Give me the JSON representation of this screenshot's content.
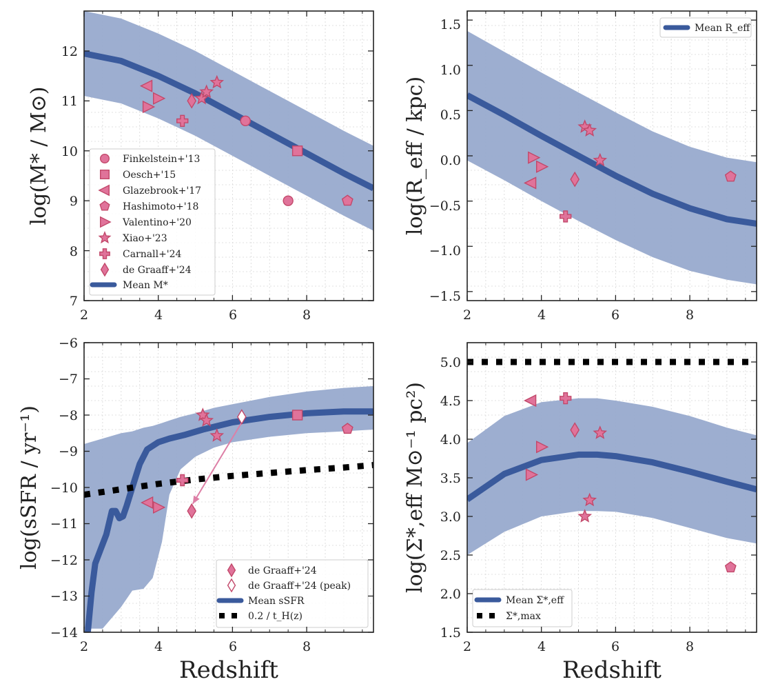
{
  "colors": {
    "band": "#98aacd",
    "mean": "#3a5a9c",
    "obs_fill": "#e0739a",
    "obs_edge": "#c2486a",
    "hline": "#000000",
    "arrow": "#dd7fa6"
  },
  "chart_data": [
    {
      "id": "mass",
      "type": "line",
      "ylabel": "log(M* / M⊙)",
      "xlabel": "",
      "xlim": [
        2,
        9.8
      ],
      "ylim": [
        7,
        12.8
      ],
      "xticks": [
        "2",
        "4",
        "6",
        "8"
      ],
      "yticks": [
        "7",
        "8",
        "9",
        "10",
        "11",
        "12"
      ],
      "x": [
        2,
        3,
        4,
        5,
        6,
        7,
        8,
        9,
        9.8
      ],
      "mean": [
        11.95,
        11.8,
        11.5,
        11.15,
        10.75,
        10.35,
        9.95,
        9.55,
        9.25
      ],
      "band_upper": [
        12.8,
        12.65,
        12.35,
        12.0,
        11.6,
        11.2,
        10.8,
        10.4,
        10.1
      ],
      "band_lower": [
        11.1,
        10.95,
        10.65,
        10.3,
        9.9,
        9.5,
        9.1,
        8.7,
        8.4
      ],
      "points": [
        {
          "label": "Finkelstein+'13",
          "marker": "circle",
          "x": [
            6.35,
            7.5
          ],
          "y": [
            10.6,
            9.0
          ]
        },
        {
          "label": "Oesch+'15",
          "marker": "square",
          "x": [
            7.75
          ],
          "y": [
            10.0
          ]
        },
        {
          "label": "Glazebrook+'17",
          "marker": "tri-left",
          "x": [
            3.7
          ],
          "y": [
            11.3
          ]
        },
        {
          "label": "Hashimoto+'18",
          "marker": "pentagon",
          "x": [
            9.1
          ],
          "y": [
            9.0
          ]
        },
        {
          "label": "Valentino+'20",
          "marker": "tri-right",
          "x": [
            3.72,
            4.0
          ],
          "y": [
            10.88,
            11.05
          ]
        },
        {
          "label": "Xiao+'23",
          "marker": "star",
          "x": [
            5.17,
            5.3,
            5.58
          ],
          "y": [
            11.05,
            11.18,
            11.37
          ]
        },
        {
          "label": "Carnall+'24",
          "marker": "plus",
          "x": [
            4.65
          ],
          "y": [
            10.6
          ]
        },
        {
          "label": "de Graaff+'24",
          "marker": "diamond",
          "x": [
            4.9
          ],
          "y": [
            11.0
          ]
        }
      ],
      "legend": {
        "position": "lower-left",
        "entries": [
          {
            "label": "Finkelstein+'13",
            "marker": "circle"
          },
          {
            "label": "Oesch+'15",
            "marker": "square"
          },
          {
            "label": "Glazebrook+'17",
            "marker": "tri-left"
          },
          {
            "label": "Hashimoto+'18",
            "marker": "pentagon"
          },
          {
            "label": "Valentino+'20",
            "marker": "tri-right"
          },
          {
            "label": "Xiao+'23",
            "marker": "star"
          },
          {
            "label": "Carnall+'24",
            "marker": "plus"
          },
          {
            "label": "de Graaff+'24",
            "marker": "diamond"
          },
          {
            "label": "Mean M*",
            "marker": "line"
          }
        ]
      }
    },
    {
      "id": "reff",
      "type": "line",
      "ylabel": "log(R_eff / kpc)",
      "xlabel": "",
      "xlim": [
        2,
        9.8
      ],
      "ylim": [
        -1.6,
        1.6
      ],
      "xticks": [
        "2",
        "4",
        "6",
        "8"
      ],
      "yticks": [
        "−1.5",
        "−1.0",
        "−0.5",
        "0.0",
        "0.5",
        "1.0",
        "1.5"
      ],
      "x": [
        2,
        3,
        4,
        5,
        6,
        7,
        8,
        9,
        9.8
      ],
      "mean": [
        0.67,
        0.45,
        0.22,
        0.0,
        -0.22,
        -0.42,
        -0.58,
        -0.7,
        -0.75
      ],
      "band_upper": [
        1.38,
        1.15,
        0.92,
        0.7,
        0.48,
        0.27,
        0.1,
        -0.02,
        -0.07
      ],
      "band_lower": [
        -0.05,
        -0.27,
        -0.5,
        -0.72,
        -0.93,
        -1.12,
        -1.27,
        -1.37,
        -1.42
      ],
      "points": [
        {
          "label": "Glazebrook+'17",
          "marker": "tri-left",
          "x": [
            3.72
          ],
          "y": [
            -0.3
          ]
        },
        {
          "label": "Valentino+'20",
          "marker": "tri-right",
          "x": [
            3.78,
            4.0
          ],
          "y": [
            -0.02,
            -0.12
          ]
        },
        {
          "label": "Xiao+'23",
          "marker": "star",
          "x": [
            5.17,
            5.3,
            5.58
          ],
          "y": [
            0.32,
            0.28,
            -0.05
          ]
        },
        {
          "label": "Carnall+'24",
          "marker": "plus",
          "x": [
            4.65
          ],
          "y": [
            -0.67
          ]
        },
        {
          "label": "de Graaff+'24",
          "marker": "diamond",
          "x": [
            4.9
          ],
          "y": [
            -0.26
          ]
        },
        {
          "label": "Hashimoto+'18",
          "marker": "pentagon",
          "x": [
            9.1
          ],
          "y": [
            -0.23
          ]
        }
      ],
      "legend": {
        "position": "top-right",
        "entries": [
          {
            "label": "Mean R_eff",
            "marker": "line"
          }
        ]
      }
    },
    {
      "id": "ssfr",
      "type": "line",
      "ylabel": "log(sSFR / yr⁻¹)",
      "xlabel": "Redshift",
      "xlim": [
        2,
        9.8
      ],
      "ylim": [
        -14,
        -6
      ],
      "xticks": [
        "2",
        "4",
        "6",
        "8"
      ],
      "yticks": [
        "−14",
        "−13",
        "−12",
        "−11",
        "−10",
        "−9",
        "−8",
        "−7",
        "−6"
      ],
      "mean_x": [
        2.1,
        2.2,
        2.3,
        2.45,
        2.6,
        2.75,
        2.85,
        2.95,
        3.05,
        3.15,
        3.3,
        3.5,
        3.7,
        4.0,
        4.3,
        4.7,
        5.2,
        6.0,
        7.0,
        8.0,
        9.0,
        9.8
      ],
      "mean": [
        -14.0,
        -12.9,
        -12.1,
        -11.7,
        -11.3,
        -10.65,
        -10.65,
        -10.85,
        -10.8,
        -10.5,
        -10.0,
        -9.35,
        -8.95,
        -8.75,
        -8.65,
        -8.55,
        -8.4,
        -8.2,
        -8.05,
        -7.95,
        -7.9,
        -7.9
      ],
      "band_x": [
        2,
        2.5,
        3,
        3.3,
        3.6,
        3.85,
        4.1,
        4.3,
        4.6,
        5,
        5.5,
        6,
        7,
        8,
        9,
        9.8
      ],
      "band_upper": [
        -8.8,
        -8.65,
        -8.5,
        -8.45,
        -8.35,
        -8.3,
        -8.22,
        -8.15,
        -8.05,
        -7.95,
        -7.8,
        -7.7,
        -7.5,
        -7.35,
        -7.25,
        -7.2
      ],
      "band_lower": [
        -13.9,
        -13.9,
        -13.3,
        -12.85,
        -12.8,
        -12.5,
        -11.5,
        -10.2,
        -9.5,
        -9.15,
        -8.9,
        -8.75,
        -8.6,
        -8.5,
        -8.45,
        -8.4
      ],
      "hline_x": [
        2,
        3,
        4,
        5,
        6,
        7,
        8,
        9,
        9.8
      ],
      "hline_y": [
        -10.2,
        -10.05,
        -9.9,
        -9.78,
        -9.68,
        -9.6,
        -9.52,
        -9.45,
        -9.38
      ],
      "points": [
        {
          "label": "de Graaff+'24",
          "marker": "diamond",
          "x": [
            4.9
          ],
          "y": [
            -10.65
          ]
        },
        {
          "label": "de Graaff+'24 (peak)",
          "marker": "diamond-open",
          "x": [
            6.25
          ],
          "y": [
            -8.05
          ]
        },
        {
          "label": "Xiao+'23",
          "marker": "star",
          "x": [
            5.2,
            5.3,
            5.58
          ],
          "y": [
            -8.0,
            -8.15,
            -8.57
          ]
        },
        {
          "label": "Carnall+'24",
          "marker": "plus",
          "x": [
            4.65
          ],
          "y": [
            -9.8
          ]
        },
        {
          "label": "Glazebrook+'17",
          "marker": "tri-left",
          "x": [
            3.72
          ],
          "y": [
            -10.42
          ]
        },
        {
          "label": "Valentino+'20",
          "marker": "tri-right",
          "x": [
            4.0
          ],
          "y": [
            -10.55
          ]
        },
        {
          "label": "Oesch+'15",
          "marker": "square",
          "x": [
            7.75
          ],
          "y": [
            -8.0
          ]
        },
        {
          "label": "Hashimoto+'18",
          "marker": "pentagon",
          "x": [
            9.1
          ],
          "y": [
            -8.38
          ]
        }
      ],
      "arrow": {
        "from": [
          6.25,
          -8.2
        ],
        "to": [
          4.93,
          -10.45
        ]
      },
      "legend": {
        "position": "lower-right",
        "entries": [
          {
            "label": "de Graaff+'24",
            "marker": "diamond"
          },
          {
            "label": "de Graaff+'24 (peak)",
            "marker": "diamond-open"
          },
          {
            "label": "Mean sSFR",
            "marker": "line"
          },
          {
            "label": "0.2 / t_H(z)",
            "marker": "dotted"
          }
        ]
      }
    },
    {
      "id": "sigma",
      "type": "line",
      "ylabel": "log(Σ*,eff M⊙⁻¹ pc²)",
      "xlabel": "Redshift",
      "xlim": [
        2,
        9.8
      ],
      "ylim": [
        1.5,
        5.25
      ],
      "xticks": [
        "2",
        "4",
        "6",
        "8"
      ],
      "yticks": [
        "1.5",
        "2.0",
        "2.5",
        "3.0",
        "3.5",
        "4.0",
        "4.5",
        "5.0"
      ],
      "x": [
        2,
        3,
        4,
        5,
        5.5,
        6,
        7,
        8,
        9,
        9.8
      ],
      "mean": [
        3.22,
        3.55,
        3.73,
        3.8,
        3.8,
        3.78,
        3.7,
        3.58,
        3.45,
        3.35
      ],
      "band_upper": [
        3.95,
        4.3,
        4.48,
        4.53,
        4.53,
        4.5,
        4.42,
        4.3,
        4.15,
        4.05
      ],
      "band_lower": [
        2.5,
        2.8,
        3.0,
        3.07,
        3.07,
        3.06,
        2.98,
        2.85,
        2.72,
        2.65
      ],
      "hline_x": [
        2,
        9.8
      ],
      "hline_y": [
        5.0,
        5.0
      ],
      "points": [
        {
          "label": "Glazebrook+'17",
          "marker": "tri-left",
          "x": [
            3.72
          ],
          "y": [
            4.5
          ]
        },
        {
          "label": "Valentino+'20",
          "marker": "tri-right",
          "x": [
            3.72,
            4.0
          ],
          "y": [
            3.54,
            3.9
          ]
        },
        {
          "label": "Carnall+'24",
          "marker": "plus",
          "x": [
            4.65
          ],
          "y": [
            4.53
          ]
        },
        {
          "label": "de Graaff+'24",
          "marker": "diamond",
          "x": [
            4.9
          ],
          "y": [
            4.12
          ]
        },
        {
          "label": "Xiao+'23",
          "marker": "star",
          "x": [
            5.17,
            5.3,
            5.58
          ],
          "y": [
            3.0,
            3.21,
            4.08
          ]
        },
        {
          "label": "Hashimoto+'18",
          "marker": "pentagon",
          "x": [
            9.1
          ],
          "y": [
            2.34
          ]
        }
      ],
      "legend": {
        "position": "lower-left",
        "entries": [
          {
            "label": "Mean Σ*,eff",
            "marker": "line"
          },
          {
            "label": "Σ*,max",
            "marker": "dotted"
          }
        ]
      }
    }
  ]
}
